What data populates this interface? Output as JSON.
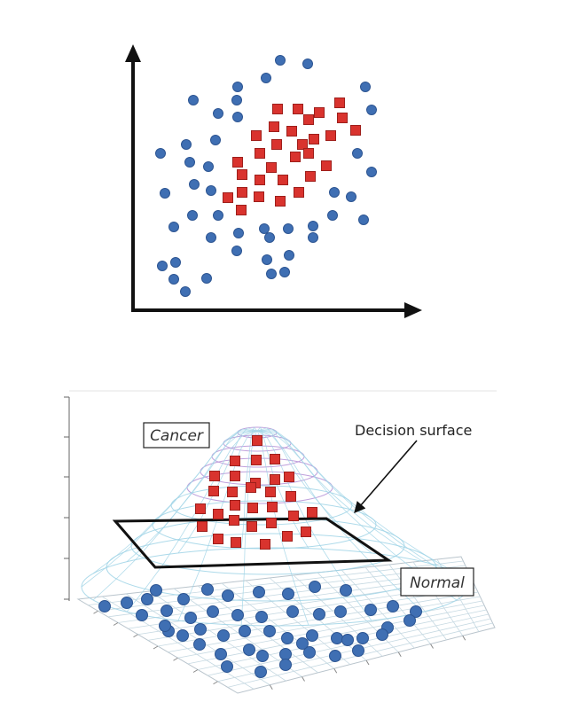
{
  "colors": {
    "circle_fill": "#3f6fb3",
    "circle_stroke": "#2d5592",
    "square_fill": "#d9332e",
    "square_stroke": "#9e1f1b",
    "axis": "#111111",
    "plane": "#111111",
    "mesh_blue": "#9fd3e6",
    "mesh_purple": "#b48fd6"
  },
  "labels": {
    "cancer": "Cancer",
    "normal": "Normal",
    "decision_surface": "Decision surface"
  },
  "icons": {
    "arrow": "arrow-icon"
  }
}
